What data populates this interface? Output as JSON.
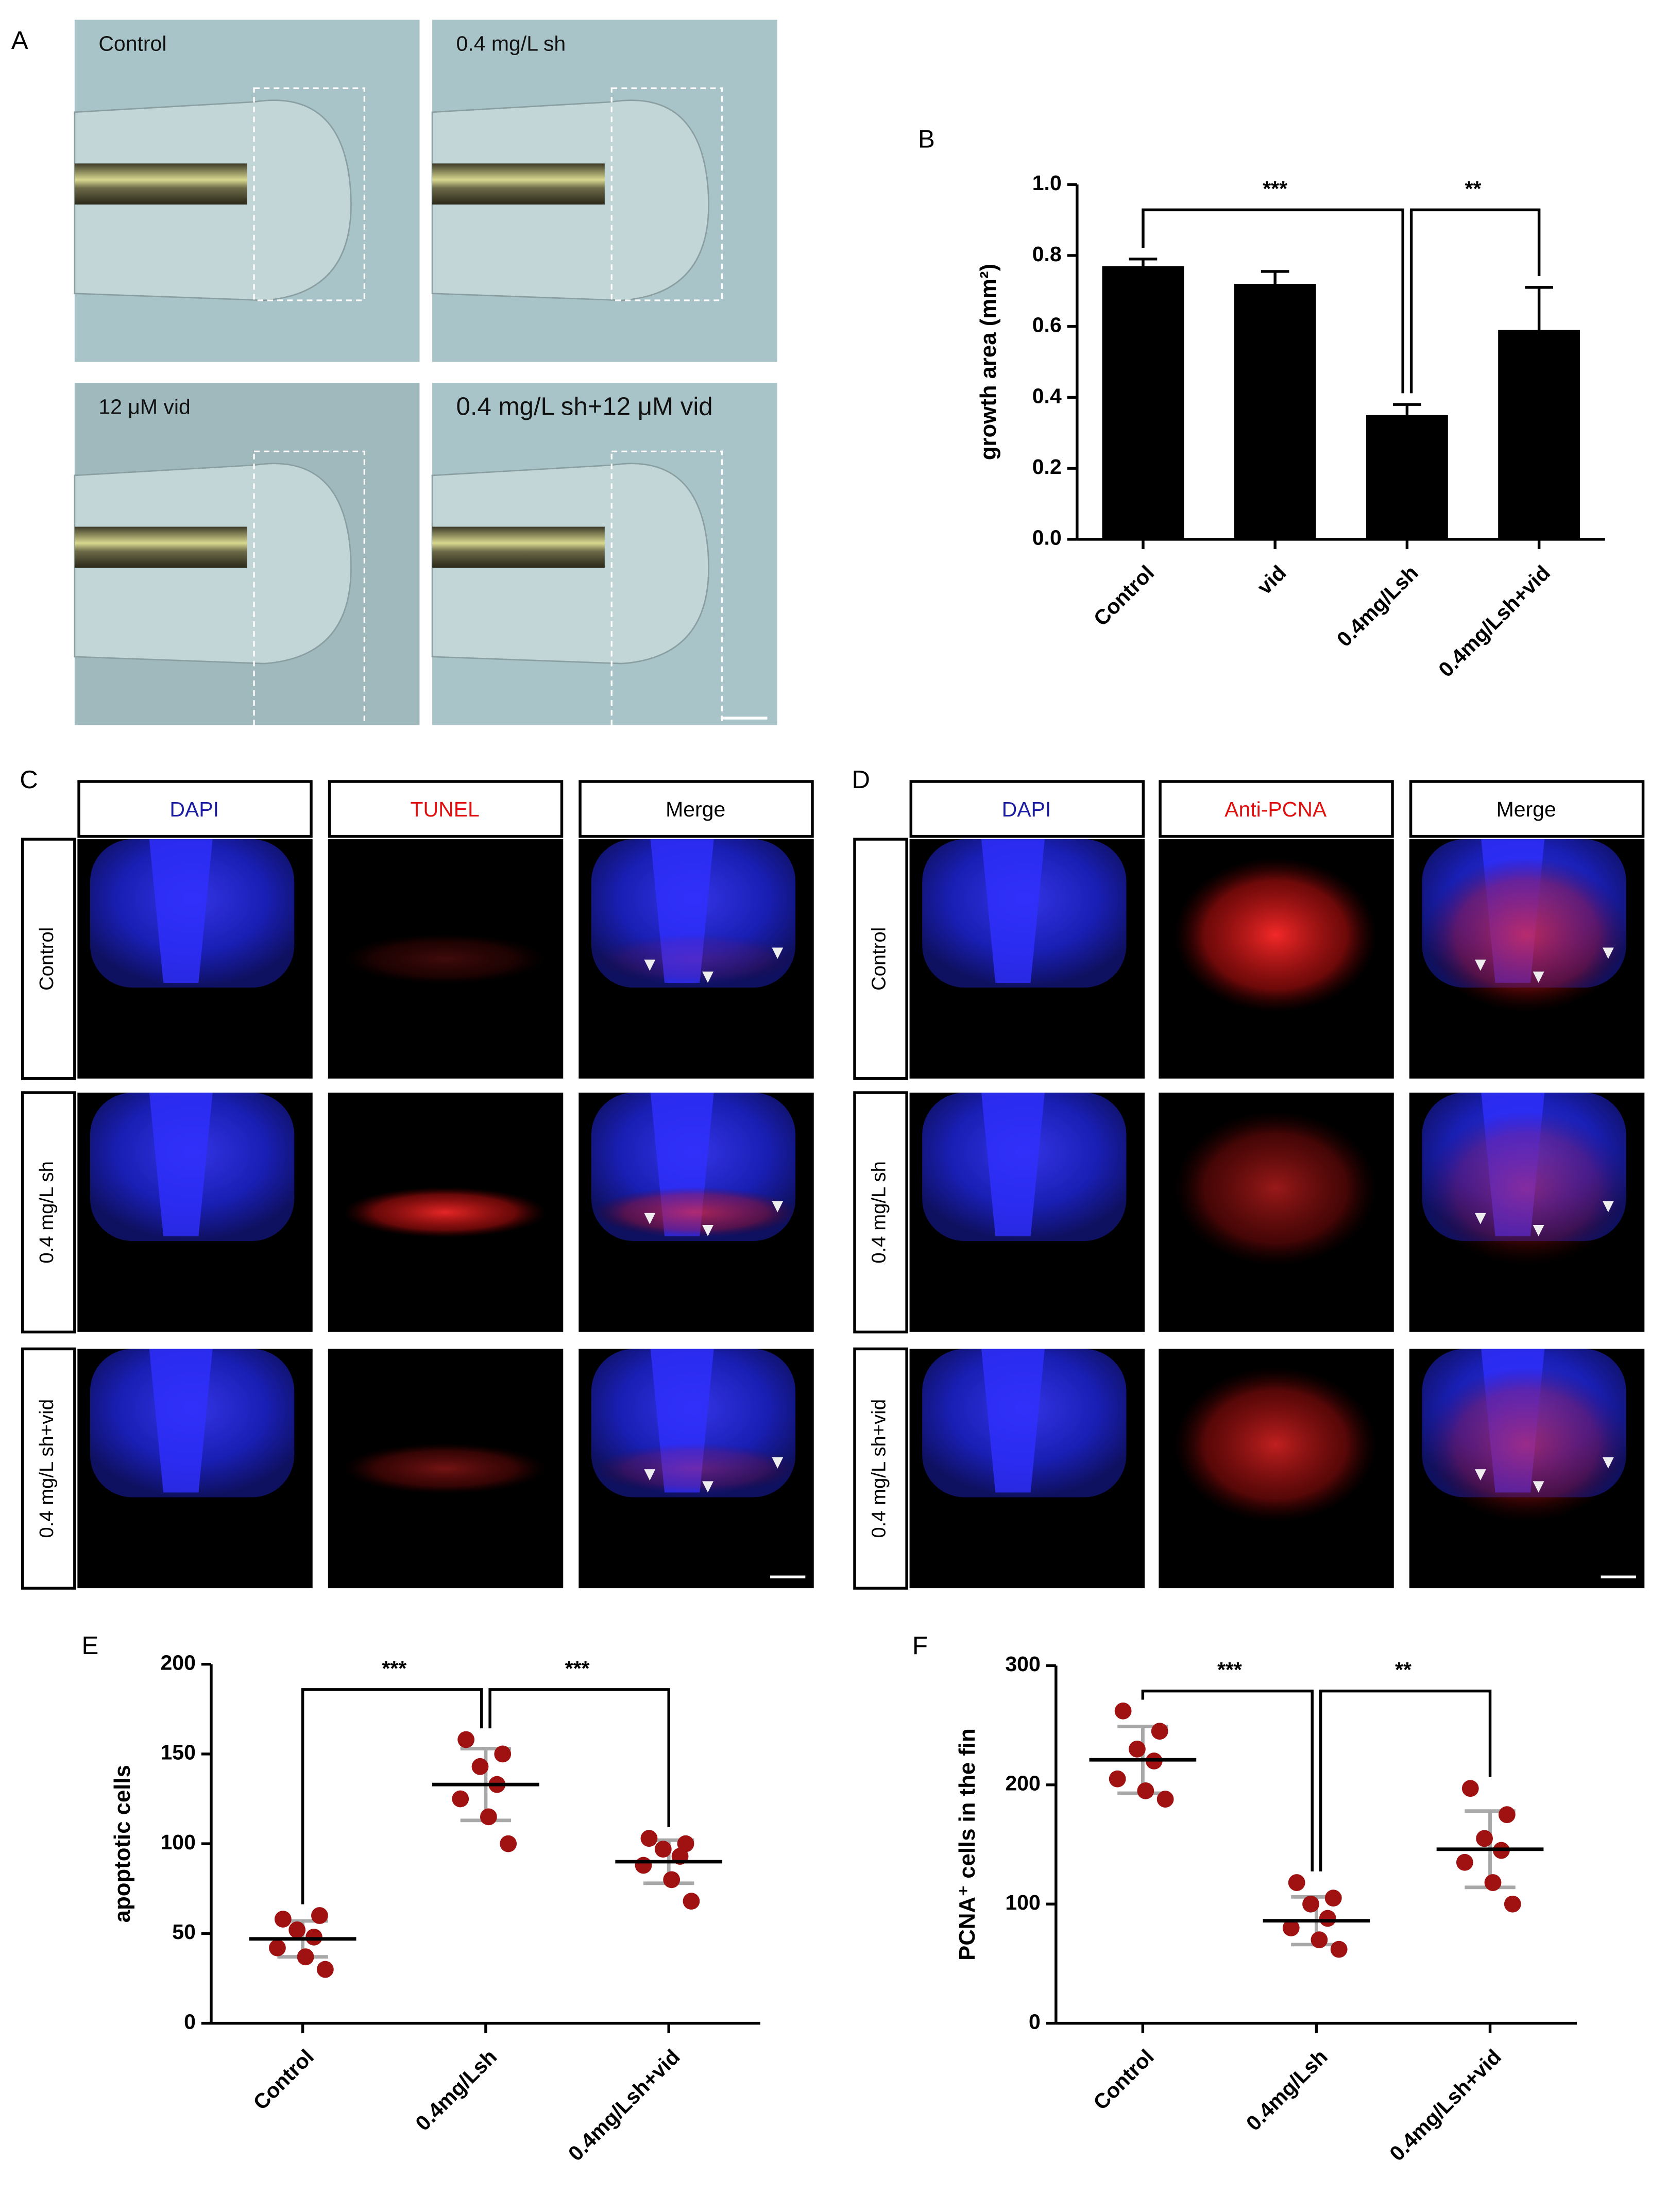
{
  "panel_a": {
    "label": "A",
    "captions": [
      "Control",
      "0.4 mg/L sh",
      "12 μM vid",
      "0.4 mg/L sh+12 μM vid"
    ]
  },
  "panel_c": {
    "label": "C",
    "columns": [
      "DAPI",
      "TUNEL",
      "Merge"
    ],
    "column_colors": [
      "#1c1ca0",
      "#e01010",
      "#000000"
    ],
    "rows": [
      "Control",
      "0.4 mg/L sh",
      "0.4 mg/L sh+vid"
    ]
  },
  "panel_d": {
    "label": "D",
    "columns": [
      "DAPI",
      "Anti-PCNA",
      "Merge"
    ],
    "column_colors": [
      "#1c1ca0",
      "#e01010",
      "#000000"
    ],
    "rows": [
      "Control",
      "0.4 mg/L sh",
      "0.4 mg/L sh+vid"
    ]
  },
  "chart_data": [
    {
      "panel_label": "B",
      "type": "bar",
      "y_label": "growth area (mm²)",
      "categories": [
        "Control",
        "vid",
        "0.4mg/Lsh",
        "0.4mg/Lsh+vid"
      ],
      "values": [
        0.77,
        0.72,
        0.35,
        0.59
      ],
      "errors": [
        0.02,
        0.035,
        0.03,
        0.12
      ],
      "color": "#000000",
      "ylim": [
        0,
        1.0
      ],
      "yticks": [
        {
          "value": 0,
          "label": "0.0"
        },
        {
          "value": 0.2,
          "label": "0.2"
        },
        {
          "value": 0.4,
          "label": "0.4"
        },
        {
          "value": 0.6,
          "label": "0.6"
        },
        {
          "value": 0.8,
          "label": "0.8"
        },
        {
          "value": 1.0,
          "label": "1.0"
        }
      ],
      "significance": [
        {
          "text": "***",
          "between": [
            "Control",
            "0.4mg/Lsh"
          ]
        },
        {
          "text": "**",
          "between": [
            "0.4mg/Lsh",
            "0.4mg/Lsh+vid"
          ]
        }
      ]
    },
    {
      "panel_label": "E",
      "type": "dot",
      "y_label": "apoptotic cells",
      "categories": [
        "Control",
        "0.4mg/Lsh",
        "0.4mg/Lsh+vid"
      ],
      "values": [
        [
          58,
          60,
          52,
          48,
          42,
          37,
          30
        ],
        [
          158,
          150,
          143,
          133,
          125,
          115,
          100
        ],
        [
          103,
          100,
          97,
          93,
          88,
          80,
          68
        ]
      ],
      "means": [
        47,
        133,
        90
      ],
      "sd": [
        10,
        20,
        12
      ],
      "color": "#a01212",
      "ylim": [
        0,
        200
      ],
      "yticks": [
        0,
        50,
        100,
        150,
        200
      ],
      "significance": [
        {
          "text": "***",
          "between": [
            "Control",
            "0.4mg/Lsh"
          ]
        },
        {
          "text": "***",
          "between": [
            "0.4mg/Lsh",
            "0.4mg/Lsh+vid"
          ]
        }
      ]
    },
    {
      "panel_label": "F",
      "type": "dot",
      "y_label": "PCNA⁺ cells in the fin",
      "categories": [
        "Control",
        "0.4mg/Lsh",
        "0.4mg/Lsh+vid"
      ],
      "values": [
        [
          262,
          245,
          230,
          220,
          205,
          195,
          188
        ],
        [
          118,
          105,
          100,
          88,
          80,
          70,
          62
        ],
        [
          197,
          175,
          155,
          145,
          135,
          118,
          100
        ]
      ],
      "means": [
        221,
        86,
        146
      ],
      "sd": [
        28,
        20,
        32
      ],
      "color": "#a01212",
      "ylim": [
        0,
        300
      ],
      "yticks": [
        0,
        100,
        200,
        300
      ],
      "significance": [
        {
          "text": "***",
          "between": [
            "Control",
            "0.4mg/Lsh"
          ]
        },
        {
          "text": "**",
          "between": [
            "0.4mg/Lsh",
            "0.4mg/Lsh+vid"
          ]
        }
      ]
    }
  ]
}
